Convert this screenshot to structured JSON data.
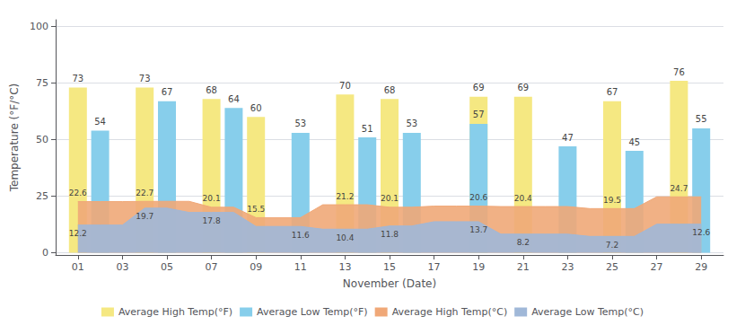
{
  "chart_data": {
    "type": "bar",
    "x_label": "November (Date)",
    "y_label": "Temperature (°F/°C)",
    "xlim": [
      0,
      30
    ],
    "xticks": [
      {
        "value": 1,
        "label": "01"
      },
      {
        "value": 3,
        "label": "03"
      },
      {
        "value": 5,
        "label": "05"
      },
      {
        "value": 7,
        "label": "07"
      },
      {
        "value": 9,
        "label": "09"
      },
      {
        "value": 11,
        "label": "11"
      },
      {
        "value": 13,
        "label": "13"
      },
      {
        "value": 15,
        "label": "15"
      },
      {
        "value": 17,
        "label": "17"
      },
      {
        "value": 19,
        "label": "19"
      },
      {
        "value": 21,
        "label": "21"
      },
      {
        "value": 23,
        "label": "23"
      },
      {
        "value": 25,
        "label": "25"
      },
      {
        "value": 27,
        "label": "27"
      },
      {
        "value": 29,
        "label": "29"
      }
    ],
    "ylim": [
      -1,
      103
    ],
    "yticks": [
      0,
      25,
      50,
      75,
      100
    ],
    "grid": true,
    "legend": "bottom",
    "series": [
      {
        "name": "Average High Temp(°F)",
        "type": "bar",
        "color": "#F5E882",
        "data_labels": true,
        "x": [
          1,
          4,
          7,
          9,
          13,
          15,
          19,
          21,
          25,
          28
        ],
        "values": [
          73,
          73,
          68,
          60,
          70,
          68,
          69,
          69,
          67,
          76
        ]
      },
      {
        "name": "Average Low Temp(°F)",
        "type": "bar",
        "color": "#87CEEB",
        "data_labels": true,
        "x": [
          2,
          5,
          8,
          11,
          14,
          16,
          19,
          23,
          26,
          29
        ],
        "values": [
          54,
          67,
          64,
          53,
          51,
          53,
          57,
          47,
          45,
          55
        ]
      },
      {
        "name": "Average High Temp(°C)",
        "type": "area",
        "color": "#F0A878",
        "x": [
          1,
          2,
          3,
          4,
          5,
          6,
          7,
          8,
          9,
          10,
          11,
          12,
          13,
          14,
          15,
          16,
          17,
          18,
          19,
          20,
          21,
          22,
          23,
          24,
          25,
          26,
          27,
          28,
          29
        ],
        "values": [
          22.6,
          22.6,
          22.6,
          22.7,
          22.7,
          22.7,
          20.1,
          20.1,
          15.5,
          15.5,
          15.5,
          21.2,
          21.2,
          21.2,
          20.1,
          20.1,
          20.6,
          20.6,
          20.6,
          20.4,
          20.4,
          20.4,
          20.4,
          19.5,
          19.5,
          19.5,
          24.7,
          24.7,
          24.7
        ],
        "value_labels": [
          "22.6",
          null,
          null,
          "22.7",
          null,
          null,
          "20.1",
          null,
          "15.5",
          null,
          null,
          null,
          "21.2",
          null,
          "20.1",
          null,
          null,
          null,
          "20.6",
          null,
          "20.4",
          null,
          null,
          null,
          "19.5",
          null,
          null,
          "24.7",
          null
        ]
      },
      {
        "name": "Average Low Temp(°C)",
        "type": "area",
        "color": "#A0B8D8",
        "x": [
          1,
          2,
          3,
          4,
          5,
          6,
          7,
          8,
          9,
          10,
          11,
          12,
          13,
          14,
          15,
          16,
          17,
          18,
          19,
          20,
          21,
          22,
          23,
          24,
          25,
          26,
          27,
          28,
          29
        ],
        "values": [
          12.2,
          12.2,
          12.2,
          19.7,
          19.7,
          17.8,
          17.8,
          17.8,
          11.6,
          11.6,
          11.6,
          10.4,
          10.4,
          10.4,
          11.8,
          11.8,
          13.7,
          13.7,
          13.7,
          8.2,
          8.2,
          8.2,
          8.2,
          7.2,
          7.2,
          7.2,
          12.6,
          12.6,
          12.6
        ],
        "value_labels": [
          "12.2",
          null,
          null,
          "19.7",
          null,
          null,
          "17.8",
          null,
          null,
          null,
          "11.6",
          null,
          "10.4",
          null,
          "11.8",
          null,
          null,
          null,
          "13.7",
          null,
          "8.2",
          null,
          null,
          null,
          "7.2",
          null,
          null,
          null,
          "12.6"
        ]
      }
    ]
  }
}
